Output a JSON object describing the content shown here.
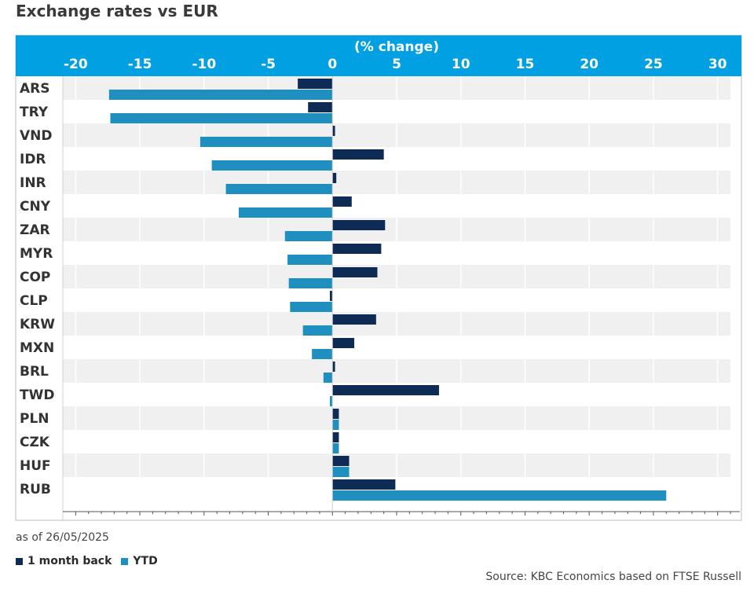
{
  "title": "Exchange rates vs EUR",
  "as_of": "as of 26/05/2025",
  "source": "Source: KBC Economics based on FTSE Russell",
  "colors": {
    "header": "#00a0e3",
    "month": "#0d2b55",
    "ytd": "#1f8fc0",
    "band": "#f0f0f0"
  },
  "legend": [
    {
      "label": "1 month back",
      "color": "#0d2b55"
    },
    {
      "label": "YTD",
      "color": "#1f8fc0"
    }
  ],
  "chart_data": {
    "type": "bar",
    "orientation": "horizontal",
    "title": "Exchange rates vs EUR",
    "xlabel": "(% change)",
    "xlim": [
      -21,
      31
    ],
    "xticks": [
      -20,
      -15,
      -10,
      -5,
      0,
      5,
      10,
      15,
      20,
      25,
      30
    ],
    "grid": true,
    "legend_position": "bottom-left",
    "categories": [
      "ARS",
      "TRY",
      "VND",
      "IDR",
      "INR",
      "CNY",
      "ZAR",
      "MYR",
      "COP",
      "CLP",
      "KRW",
      "MXN",
      "BRL",
      "TWD",
      "PLN",
      "CZK",
      "HUF",
      "RUB"
    ],
    "series": [
      {
        "name": "1 month back",
        "values": [
          -2.7,
          -1.9,
          0.2,
          4.0,
          0.3,
          1.5,
          4.1,
          3.8,
          3.5,
          -0.2,
          3.4,
          1.7,
          0.2,
          8.3,
          0.5,
          0.5,
          1.3,
          4.9
        ]
      },
      {
        "name": "YTD",
        "values": [
          -17.4,
          -17.3,
          -10.3,
          -9.4,
          -8.3,
          -7.3,
          -3.7,
          -3.5,
          -3.4,
          -3.3,
          -2.3,
          -1.6,
          -0.7,
          -0.2,
          0.5,
          0.5,
          1.3,
          26.0
        ]
      }
    ]
  }
}
